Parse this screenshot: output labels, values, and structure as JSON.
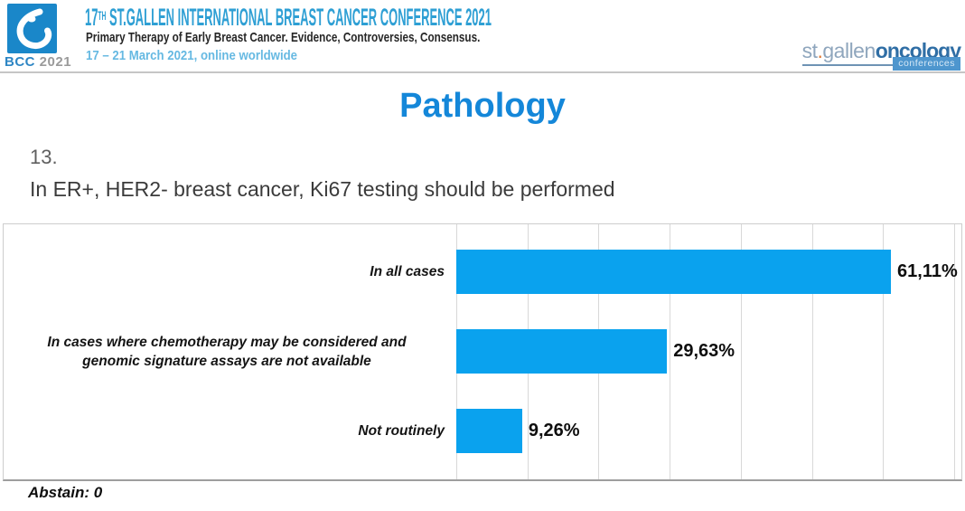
{
  "header": {
    "logo_acronym": "BCC",
    "logo_year": "2021",
    "title_number": "17",
    "title_superscript": "TH",
    "title_rest": " ST.GALLEN INTERNATIONAL BREAST CANCER CONFERENCE 2021",
    "subtitle": "Primary Therapy of Early Breast Cancer. Evidence, Controversies, Consensus.",
    "dates": "17 – 21 March 2021, online worldwide",
    "brand": {
      "part_light_1": "st",
      "dot": ".",
      "part_light_2": "gallen",
      "part_dark": "oncology",
      "tagline": "conferences"
    }
  },
  "main": {
    "section_title": "Pathology",
    "question_number": "13.",
    "question_text": "In ER+, HER2- breast cancer, Ki67 testing should be performed"
  },
  "chart_data": {
    "type": "bar",
    "orientation": "horizontal",
    "title": "",
    "categories": [
      "In all cases",
      "In cases where chemotherapy may be considered and\ngenomic signature assays are not available",
      "Not routinely"
    ],
    "values": [
      61.11,
      29.63,
      9.26
    ],
    "value_labels": [
      "61,11%",
      "29,63%",
      "9,26%"
    ],
    "xlim": [
      0,
      70
    ],
    "grid_step": 10,
    "grid": true,
    "legend": false,
    "bar_color": "#0AA2EE",
    "gridline_color": "#d8d8d8"
  },
  "footer": {
    "abstain": "Abstain: 0"
  },
  "colors": {
    "header_title_blue": "#2E9FD4",
    "dates_blue": "#66B9E2",
    "section_title_blue": "#1487D9",
    "logo_square_blue": "#1A87C9",
    "brand_light_bluegray": "#8FA6BD",
    "brand_dark_blue": "#2F6EA5",
    "brand_dot_orange": "#E07B39"
  }
}
